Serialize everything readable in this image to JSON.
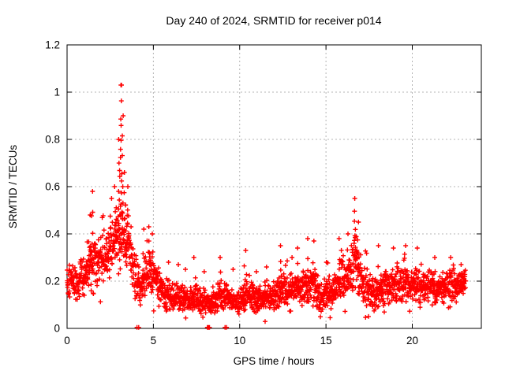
{
  "chart_data": {
    "type": "scatter",
    "title": "Day 240 of 2024, SRMTID for receiver p014",
    "xlabel": "GPS time / hours",
    "ylabel": "SRMTID / TECUs",
    "xlim": [
      0,
      24
    ],
    "ylim": [
      0,
      1.2
    ],
    "xticks": [
      0,
      5,
      10,
      15,
      20
    ],
    "xtick_labels": [
      "0",
      "5",
      "10",
      "15",
      "20"
    ],
    "yticks": [
      0,
      0.2,
      0.4,
      0.6,
      0.8,
      1,
      1.2
    ],
    "ytick_labels": [
      "0",
      "0.2",
      "0.4",
      "0.6",
      "0.8",
      "1",
      "1.2"
    ],
    "grid": true,
    "legend": "none",
    "marker": "plus",
    "marker_color": "#ff0000",
    "grid_color": "#b4b4b4",
    "border_color": "#000000",
    "background_color": "#ffffff",
    "series_name": "SRMTID",
    "data_start_hour": 0,
    "data_end_hour": 23.1,
    "samples_per_hour": 95,
    "seed": 42,
    "band_profile": [
      [
        0.0,
        0.22,
        0.09
      ],
      [
        0.6,
        0.19,
        0.08
      ],
      [
        1.0,
        0.22,
        0.1
      ],
      [
        1.5,
        0.27,
        0.13
      ],
      [
        2.0,
        0.3,
        0.12
      ],
      [
        2.6,
        0.33,
        0.13
      ],
      [
        3.0,
        0.4,
        0.15
      ],
      [
        3.3,
        0.4,
        0.14
      ],
      [
        3.6,
        0.35,
        0.12
      ],
      [
        3.9,
        0.22,
        0.13
      ],
      [
        4.3,
        0.18,
        0.08
      ],
      [
        4.7,
        0.26,
        0.1
      ],
      [
        5.1,
        0.22,
        0.09
      ],
      [
        5.6,
        0.14,
        0.06
      ],
      [
        6.5,
        0.13,
        0.06
      ],
      [
        7.5,
        0.12,
        0.06
      ],
      [
        8.3,
        0.1,
        0.05
      ],
      [
        9.0,
        0.14,
        0.07
      ],
      [
        9.7,
        0.11,
        0.05
      ],
      [
        10.4,
        0.14,
        0.07
      ],
      [
        11.0,
        0.12,
        0.06
      ],
      [
        11.7,
        0.13,
        0.06
      ],
      [
        12.4,
        0.16,
        0.08
      ],
      [
        13.0,
        0.15,
        0.07
      ],
      [
        13.6,
        0.17,
        0.08
      ],
      [
        14.1,
        0.18,
        0.09
      ],
      [
        14.7,
        0.13,
        0.07
      ],
      [
        15.2,
        0.15,
        0.08
      ],
      [
        15.8,
        0.2,
        0.1
      ],
      [
        16.3,
        0.23,
        0.11
      ],
      [
        16.7,
        0.28,
        0.13
      ],
      [
        17.1,
        0.2,
        0.1
      ],
      [
        17.7,
        0.15,
        0.09
      ],
      [
        18.3,
        0.17,
        0.08
      ],
      [
        19.0,
        0.18,
        0.08
      ],
      [
        19.8,
        0.19,
        0.08
      ],
      [
        20.6,
        0.18,
        0.08
      ],
      [
        21.4,
        0.17,
        0.08
      ],
      [
        22.2,
        0.18,
        0.07
      ],
      [
        23.1,
        0.19,
        0.06
      ]
    ],
    "spikes": [
      [
        1.3,
        0.48,
        4
      ],
      [
        1.45,
        0.58,
        7
      ],
      [
        2.55,
        0.55,
        5
      ],
      [
        2.8,
        0.6,
        5
      ],
      [
        3.0,
        0.8,
        7
      ],
      [
        3.1,
        1.03,
        13
      ],
      [
        3.22,
        0.9,
        8
      ],
      [
        3.35,
        0.66,
        5
      ],
      [
        3.55,
        0.6,
        4
      ],
      [
        4.45,
        0.42,
        3
      ],
      [
        4.75,
        0.43,
        4
      ],
      [
        4.95,
        0.4,
        3
      ],
      [
        5.9,
        0.28,
        3
      ],
      [
        6.4,
        0.27,
        3
      ],
      [
        6.9,
        0.25,
        2
      ],
      [
        7.4,
        0.3,
        4
      ],
      [
        8.0,
        0.24,
        2
      ],
      [
        8.9,
        0.3,
        4
      ],
      [
        9.6,
        0.25,
        2
      ],
      [
        10.3,
        0.33,
        4
      ],
      [
        11.0,
        0.24,
        2
      ],
      [
        11.5,
        0.26,
        3
      ],
      [
        12.4,
        0.35,
        5
      ],
      [
        13.0,
        0.3,
        3
      ],
      [
        13.35,
        0.34,
        4
      ],
      [
        13.9,
        0.38,
        4
      ],
      [
        14.3,
        0.37,
        4
      ],
      [
        15.0,
        0.28,
        2
      ],
      [
        15.8,
        0.38,
        4
      ],
      [
        16.3,
        0.4,
        4
      ],
      [
        16.65,
        0.55,
        8
      ],
      [
        16.85,
        0.45,
        5
      ],
      [
        18.0,
        0.35,
        3
      ],
      [
        18.9,
        0.34,
        3
      ],
      [
        19.6,
        0.35,
        3
      ],
      [
        20.3,
        0.34,
        3
      ],
      [
        21.3,
        0.3,
        3
      ],
      [
        22.2,
        0.3,
        3
      ],
      [
        22.8,
        0.27,
        2
      ]
    ],
    "zero_points": [
      4.05,
      4.15,
      8.13,
      8.17,
      8.17,
      8.21,
      8.21,
      8.25,
      9.15,
      9.24
    ],
    "max_point": [
      3.12,
      1.03
    ]
  }
}
